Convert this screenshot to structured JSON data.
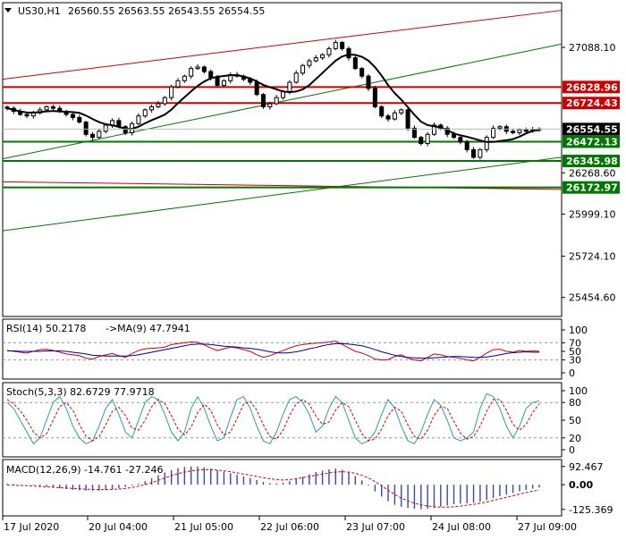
{
  "header": {
    "symbol": "US30,H1",
    "ohlc": "26560.55 26563.55 26543.55 26554.55"
  },
  "colors": {
    "frame": "#000000",
    "candle": "#000000",
    "ma": "#000000",
    "red": "#cc0000",
    "green": "#007700",
    "rsi": "#cc0000",
    "rsi_ma": "#000099",
    "stoch_main": "#2f9aa8",
    "stoch_signal": "#cc0000",
    "macd_hist": "#3a4aa0",
    "macd_signal": "#cc0000",
    "level_dot": "#bbbbbb"
  },
  "chart_data": [
    {
      "type": "candlestick",
      "name": "price",
      "x_labels": [
        "17 Jul 2020",
        "20 Jul 04:00",
        "21 Jul 05:00",
        "22 Jul 06:00",
        "23 Jul 07:00",
        "24 Jul 08:00",
        "27 Jul 09:00"
      ],
      "y_ticks": [
        "27088.10",
        "26268.60",
        "25999.10",
        "25724.10",
        "25454.60"
      ],
      "ylim": [
        25330,
        27380
      ],
      "last_price": "26554.55",
      "horizontal_levels": [
        {
          "label": "26828.96",
          "value": 26828.96,
          "color": "red"
        },
        {
          "label": "26724.43",
          "value": 26724.43,
          "color": "red"
        },
        {
          "label": "26472.13",
          "value": 26472.13,
          "color": "green"
        },
        {
          "label": "26345.98",
          "value": 26345.98,
          "color": "green"
        },
        {
          "label": "26172.97",
          "value": 26172.97,
          "color": "green"
        }
      ],
      "closes": [
        26690,
        26670,
        26650,
        26640,
        26660,
        26680,
        26700,
        26690,
        26670,
        26650,
        26630,
        26600,
        26520,
        26500,
        26540,
        26580,
        26610,
        26570,
        26530,
        26590,
        26640,
        26680,
        26700,
        26720,
        26760,
        26830,
        26870,
        26900,
        26950,
        26960,
        26930,
        26890,
        26840,
        26870,
        26910,
        26900,
        26880,
        26860,
        26780,
        26700,
        26720,
        26760,
        26800,
        26860,
        26920,
        26970,
        27000,
        27020,
        27040,
        27080,
        27120,
        27080,
        27020,
        26950,
        26900,
        26820,
        26700,
        26640,
        26620,
        26660,
        26680,
        26560,
        26500,
        26460,
        26520,
        26580,
        26560,
        26520,
        26500,
        26470,
        26420,
        26370,
        26420,
        26500,
        26560,
        26570,
        26540,
        26530,
        26550,
        26540,
        26550,
        26555
      ],
      "ma_period_note": "",
      "trendlines": [
        {
          "color": "red",
          "from": [
            0,
            26880
          ],
          "to": [
            81,
            27330
          ]
        },
        {
          "color": "red",
          "from": [
            0,
            26210
          ],
          "to": [
            81,
            26160
          ]
        },
        {
          "color": "green",
          "from": [
            0,
            26360
          ],
          "to": [
            81,
            27110
          ]
        },
        {
          "color": "green",
          "from": [
            0,
            25890
          ],
          "to": [
            81,
            26370
          ]
        }
      ]
    },
    {
      "type": "line",
      "name": "rsi",
      "label": "RSI(14) 50.2178",
      "ma_label": "->MA(9) 47.7941",
      "y_ticks": [
        "100",
        "70",
        "50",
        "30",
        "0"
      ],
      "ylim": [
        0,
        100
      ],
      "levels": [
        70,
        30
      ],
      "series": [
        {
          "name": "RSI",
          "values": [
            52,
            50,
            48,
            46,
            50,
            54,
            55,
            52,
            48,
            44,
            42,
            40,
            34,
            32,
            38,
            42,
            45,
            40,
            36,
            45,
            52,
            56,
            57,
            58,
            60,
            66,
            68,
            70,
            72,
            71,
            65,
            58,
            52,
            56,
            60,
            58,
            54,
            50,
            42,
            36,
            40,
            46,
            52,
            58,
            63,
            66,
            68,
            69,
            70,
            72,
            74,
            66,
            58,
            50,
            46,
            40,
            32,
            30,
            31,
            38,
            42,
            34,
            30,
            28,
            36,
            44,
            42,
            38,
            36,
            34,
            30,
            28,
            36,
            46,
            54,
            55,
            50,
            48,
            52,
            50,
            51,
            50.2
          ]
        },
        {
          "name": "MA",
          "values": [
            51,
            51,
            50,
            50,
            50,
            50,
            51,
            51,
            51,
            50,
            48,
            46,
            44,
            41,
            40,
            39,
            39,
            39,
            39,
            40,
            42,
            45,
            48,
            51,
            54,
            57,
            60,
            63,
            66,
            67,
            67,
            66,
            64,
            62,
            61,
            60,
            58,
            57,
            55,
            52,
            49,
            47,
            46,
            47,
            49,
            52,
            56,
            59,
            63,
            66,
            68,
            68,
            67,
            65,
            63,
            59,
            54,
            49,
            45,
            41,
            38,
            36,
            35,
            34,
            34,
            35,
            36,
            37,
            38,
            38,
            37,
            36,
            36,
            37,
            39,
            42,
            45,
            47,
            48,
            49,
            48,
            47.8
          ]
        }
      ]
    },
    {
      "type": "line",
      "name": "stochastic",
      "label": "Stoch(5,3,3) 82.6729 77.9718",
      "y_ticks": [
        "100",
        "80",
        "50",
        "20",
        "0"
      ],
      "ylim": [
        0,
        100
      ],
      "levels": [
        80,
        20
      ],
      "series": [
        {
          "name": "%K",
          "values": [
            80,
            70,
            50,
            30,
            10,
            20,
            50,
            80,
            90,
            70,
            40,
            20,
            10,
            15,
            40,
            70,
            85,
            60,
            30,
            20,
            50,
            80,
            90,
            85,
            60,
            30,
            15,
            30,
            70,
            90,
            70,
            40,
            15,
            20,
            55,
            85,
            90,
            70,
            40,
            15,
            10,
            30,
            60,
            85,
            90,
            80,
            60,
            30,
            40,
            70,
            90,
            80,
            50,
            20,
            10,
            15,
            30,
            60,
            85,
            70,
            40,
            15,
            10,
            30,
            60,
            85,
            75,
            50,
            20,
            15,
            20,
            30,
            70,
            95,
            90,
            70,
            40,
            20,
            40,
            70,
            80,
            82.7
          ]
        },
        {
          "name": "%D",
          "values": [
            85,
            78,
            66,
            50,
            30,
            20,
            27,
            50,
            73,
            80,
            67,
            43,
            23,
            15,
            22,
            42,
            65,
            72,
            58,
            37,
            33,
            50,
            73,
            85,
            78,
            58,
            35,
            25,
            38,
            63,
            77,
            67,
            42,
            25,
            30,
            53,
            77,
            82,
            67,
            42,
            22,
            18,
            33,
            58,
            78,
            85,
            77,
            57,
            43,
            47,
            67,
            80,
            73,
            50,
            27,
            15,
            18,
            35,
            58,
            72,
            65,
            42,
            22,
            18,
            33,
            58,
            73,
            70,
            48,
            28,
            18,
            22,
            40,
            65,
            85,
            85,
            67,
            43,
            33,
            43,
            63,
            78
          ]
        }
      ]
    },
    {
      "type": "bar",
      "name": "macd",
      "label": "MACD(12,26,9) -14.761 -27.246",
      "y_ticks": [
        "92.467",
        "0.00",
        "-125.369"
      ],
      "ylim": [
        -140,
        105
      ],
      "histogram": [
        5,
        3,
        2,
        0,
        -3,
        -6,
        -10,
        -14,
        -18,
        -22,
        -26,
        -28,
        -30,
        -31,
        -30,
        -28,
        -24,
        -18,
        -12,
        -4,
        6,
        18,
        32,
        48,
        62,
        74,
        84,
        90,
        93,
        92,
        88,
        82,
        74,
        66,
        58,
        50,
        42,
        34,
        24,
        14,
        8,
        6,
        10,
        18,
        28,
        40,
        52,
        64,
        72,
        78,
        82,
        76,
        62,
        44,
        22,
        -4,
        -34,
        -60,
        -84,
        -102,
        -112,
        -118,
        -122,
        -124,
        -122,
        -118,
        -112,
        -106,
        -100,
        -96,
        -94,
        -92,
        -86,
        -78,
        -68,
        -58,
        -50,
        -42,
        -34,
        -26,
        -20,
        -14.8
      ],
      "signal": [
        -2,
        -3,
        -4,
        -5,
        -7,
        -9,
        -11,
        -13,
        -15,
        -17,
        -19,
        -21,
        -23,
        -24,
        -25,
        -25,
        -24,
        -22,
        -19,
        -14,
        -8,
        0,
        10,
        22,
        34,
        46,
        56,
        64,
        70,
        74,
        76,
        76,
        74,
        70,
        66,
        60,
        54,
        48,
        42,
        36,
        30,
        26,
        24,
        26,
        30,
        36,
        42,
        48,
        54,
        60,
        64,
        66,
        64,
        58,
        48,
        34,
        16,
        -6,
        -28,
        -50,
        -68,
        -82,
        -94,
        -102,
        -108,
        -112,
        -114,
        -114,
        -112,
        -108,
        -104,
        -100,
        -94,
        -88,
        -80,
        -72,
        -64,
        -56,
        -48,
        -40,
        -33,
        -27.2
      ]
    }
  ]
}
